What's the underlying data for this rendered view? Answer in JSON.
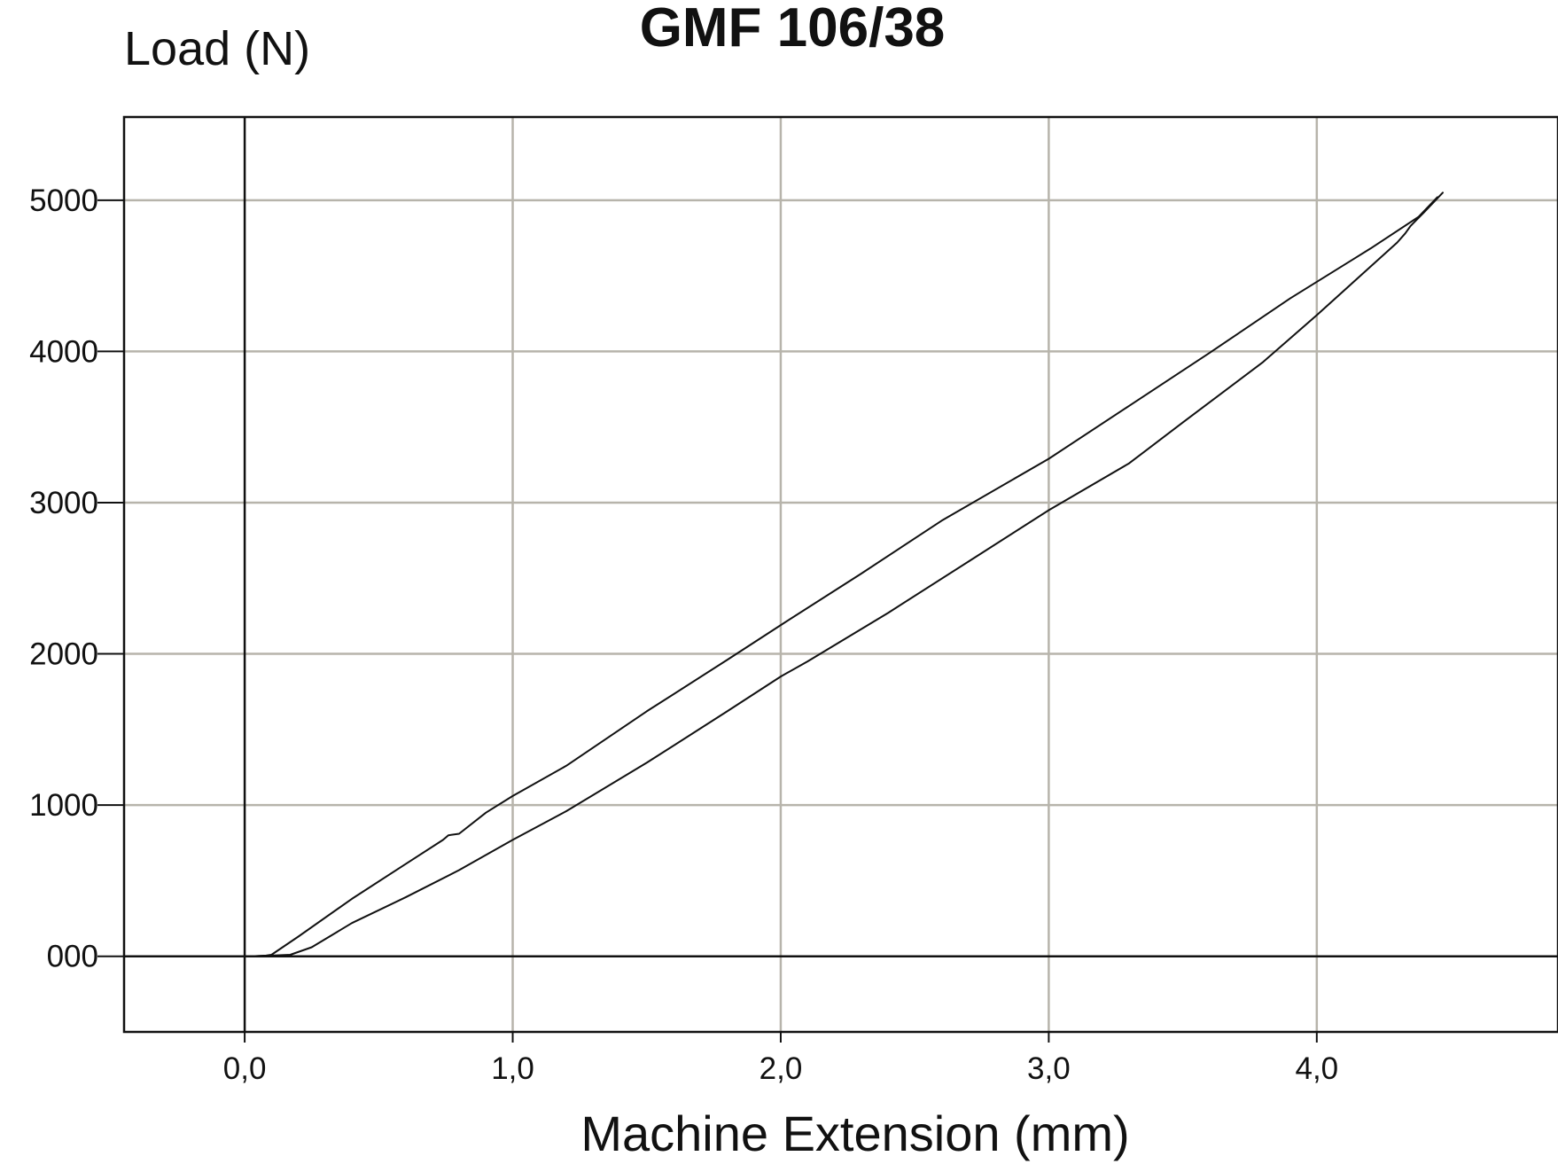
{
  "chart_data": {
    "type": "line",
    "title": "GMF 106/38",
    "xlabel": "Machine Extension (mm)",
    "ylabel": "Load (N)",
    "xlim": [
      -0.45,
      4.9
    ],
    "ylim": [
      -500,
      5550
    ],
    "x_ticks": [
      {
        "value": 0,
        "label": "0,0"
      },
      {
        "value": 1,
        "label": "1,0"
      },
      {
        "value": 2,
        "label": "2,0"
      },
      {
        "value": 3,
        "label": "3,0"
      },
      {
        "value": 4,
        "label": "4,0"
      }
    ],
    "y_ticks": [
      {
        "value": 0,
        "label": "000"
      },
      {
        "value": 1000,
        "label": "1000"
      },
      {
        "value": 2000,
        "label": "2000"
      },
      {
        "value": 3000,
        "label": "3000"
      },
      {
        "value": 4000,
        "label": "4000"
      },
      {
        "value": 5000,
        "label": "5000"
      }
    ],
    "grid": true,
    "legend": "none",
    "series": [
      {
        "x": [
          0.02,
          0.08,
          0.1,
          0.2,
          0.4,
          0.6,
          0.74,
          0.76,
          0.8,
          0.9,
          1.0,
          1.2,
          1.5,
          1.8,
          2.0,
          2.3,
          2.6,
          3.0,
          3.3,
          3.6,
          3.9,
          4.2,
          4.38,
          4.45
        ],
        "y": [
          0,
          5,
          10,
          130,
          380,
          610,
          770,
          800,
          810,
          950,
          1060,
          1260,
          1620,
          1960,
          2190,
          2530,
          2880,
          3290,
          3640,
          3990,
          4350,
          4680,
          4890,
          5020
        ]
      },
      {
        "x": [
          4.47,
          4.4,
          4.35,
          4.33,
          4.3,
          4.2,
          4.0,
          3.8,
          3.5,
          3.3,
          3.0,
          2.7,
          2.4,
          2.1,
          2.0,
          1.8,
          1.5,
          1.2,
          1.0,
          0.8,
          0.6,
          0.4,
          0.25,
          0.17,
          0.1,
          0.02
        ],
        "y": [
          5050,
          4920,
          4830,
          4780,
          4720,
          4560,
          4240,
          3930,
          3530,
          3260,
          2950,
          2610,
          2270,
          1950,
          1850,
          1620,
          1280,
          960,
          770,
          570,
          390,
          220,
          60,
          10,
          5,
          0
        ]
      }
    ]
  }
}
